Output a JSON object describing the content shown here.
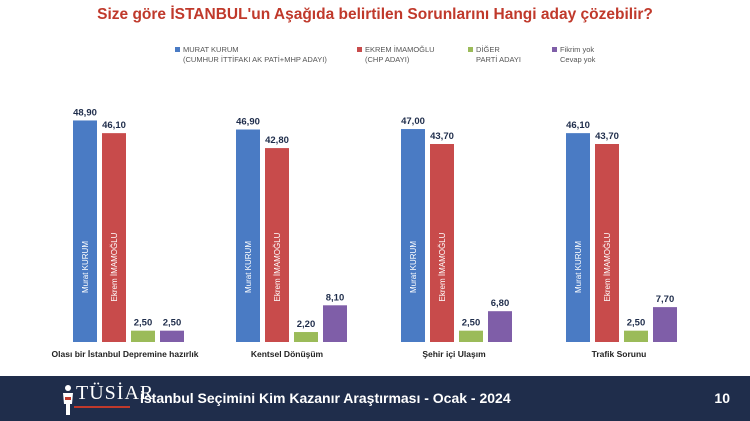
{
  "title": "Size göre İSTANBUL'un Aşağıda belirtilen Sorunlarını Hangi aday çözebilir?",
  "legend": [
    {
      "line1": "MURAT KURUM",
      "line2": "(CUMHUR İTTİFAKI AK PATİ+MHP ADAYI)",
      "color": "#4a7bc4"
    },
    {
      "line1": "EKREM İMAMOĞLU",
      "line2": "(CHP ADAYI)",
      "color": "#c84b4b"
    },
    {
      "line1": "DİĞER",
      "line2": "PARTİ ADAYI",
      "color": "#9bbb59"
    },
    {
      "line1": "Fikrim yok",
      "line2": "Cevap yok",
      "color": "#7f5ea8"
    }
  ],
  "chart_data": {
    "type": "bar",
    "categories": [
      "Olası bir İstanbul Depremine hazırlık",
      "Kentsel Dönüşüm",
      "Şehir içi Ulaşım",
      "Trafik Sorunu"
    ],
    "series": [
      {
        "name": "MURAT KURUM",
        "values": [
          48.9,
          46.9,
          47.0,
          46.1
        ],
        "color": "#4a7bc4",
        "inner_label": "Murat KURUM"
      },
      {
        "name": "EKREM İMAMOĞLU",
        "values": [
          46.1,
          42.8,
          43.7,
          43.7
        ],
        "color": "#c84b4b",
        "inner_label": "Ekrem İMAMOĞLU"
      },
      {
        "name": "DİĞER PARTİ ADAYI",
        "values": [
          2.5,
          2.2,
          2.5,
          2.5
        ],
        "color": "#9bbb59"
      },
      {
        "name": "Fikrim yok Cevap yok",
        "values": [
          2.5,
          8.1,
          6.8,
          7.7
        ],
        "color": "#7f5ea8"
      }
    ],
    "value_labels": [
      [
        "48,90",
        "46,10",
        "2,50",
        "2,50"
      ],
      [
        "46,90",
        "42,80",
        "2,20",
        "8,10"
      ],
      [
        "47,00",
        "43,70",
        "2,50",
        "6,80"
      ],
      [
        "46,10",
        "43,70",
        "2,50",
        "7,70"
      ]
    ],
    "ylim": [
      0,
      50
    ],
    "grid": false
  },
  "footer": {
    "logo": "TÜSİAR",
    "title": "İstanbul Seçimini Kim Kazanır Araştırması - Ocak - 2024",
    "page": "10"
  }
}
